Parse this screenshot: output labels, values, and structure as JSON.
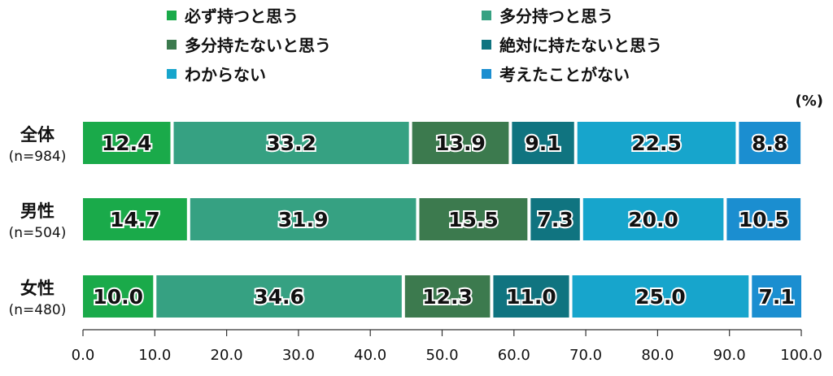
{
  "chart_data": {
    "type": "bar",
    "orientation": "horizontal",
    "stacked": true,
    "unit": "(%)",
    "title": "",
    "xlabel": "",
    "ylabel": "",
    "xlim": [
      0,
      100
    ],
    "ticks": [
      "0.0",
      "10.0",
      "20.0",
      "30.0",
      "40.0",
      "50.0",
      "60.0",
      "70.0",
      "80.0",
      "90.0",
      "100.0"
    ],
    "legend_position": "top",
    "categories": [
      {
        "name": "全体",
        "n": "(n=984)"
      },
      {
        "name": "男性",
        "n": "(n=504)"
      },
      {
        "name": "女性",
        "n": "(n=480)"
      }
    ],
    "series": [
      {
        "name": "必ず持つと思う",
        "color": "#1aaa4a",
        "values": [
          12.4,
          14.7,
          10.0
        ],
        "labels": [
          "12.4",
          "14.7",
          "10.0"
        ]
      },
      {
        "name": "多分持つと思う",
        "color": "#36a182",
        "values": [
          33.2,
          31.9,
          34.6
        ],
        "labels": [
          "33.2",
          "31.9",
          "34.6"
        ]
      },
      {
        "name": "多分持たないと思う",
        "color": "#3c7a4e",
        "values": [
          13.9,
          15.5,
          12.3
        ],
        "labels": [
          "13.9",
          "15.5",
          "12.3"
        ]
      },
      {
        "name": "絶対に持たないと思う",
        "color": "#107480",
        "values": [
          9.1,
          7.3,
          11.0
        ],
        "labels": [
          "9.1",
          "7.3",
          "11.0"
        ]
      },
      {
        "name": "わからない",
        "color": "#17a5cc",
        "values": [
          22.5,
          20.0,
          25.0
        ],
        "labels": [
          "22.5",
          "20.0",
          "25.0"
        ]
      },
      {
        "name": "考えたことがない",
        "color": "#1b8ed0",
        "values": [
          8.8,
          10.5,
          7.1
        ],
        "labels": [
          "8.8",
          "10.5",
          "7.1"
        ]
      }
    ]
  }
}
